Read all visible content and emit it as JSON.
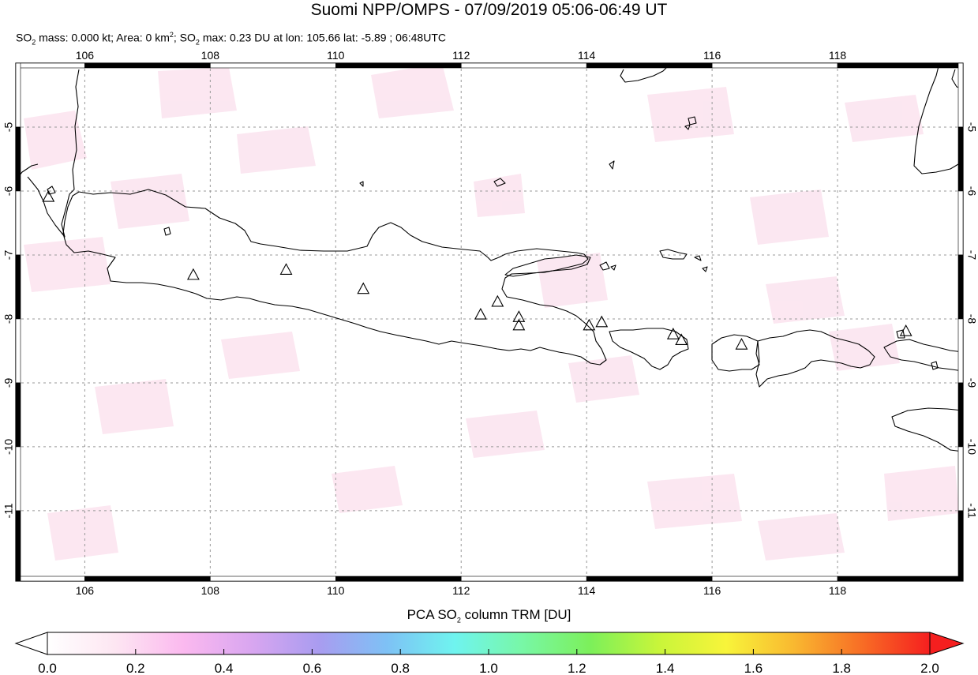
{
  "header": {
    "title": "Suomi NPP/OMPS - 07/09/2019 05:06-06:49 UT",
    "subtitle": {
      "so2_mass_label": "SO",
      "sub2": "2",
      "mass_text": " mass: 0.000 kt; Area: 0 km",
      "sup2": "2",
      "sep": "; SO",
      "max_text": " max: 0.23 DU at lon: 105.66 lat: -5.89 ; 06:48UTC"
    }
  },
  "map": {
    "lon_ticks": [
      "106",
      "108",
      "110",
      "112",
      "114",
      "116",
      "118"
    ],
    "lat_ticks": [
      "-5",
      "-6",
      "-7",
      "-8",
      "-9",
      "-10",
      "-11"
    ],
    "lon_range": [
      104.9,
      120.0
    ],
    "lat_range": [
      -12.1,
      -4.0
    ],
    "coastline_color": "#000000",
    "background_color": "#ffffff",
    "volcano_marker": "triangle-outline",
    "volcanoes": [
      {
        "lon": 105.42,
        "lat": -6.1
      },
      {
        "lon": 107.73,
        "lat": -7.32
      },
      {
        "lon": 109.21,
        "lat": -7.24
      },
      {
        "lon": 110.44,
        "lat": -7.54
      },
      {
        "lon": 112.31,
        "lat": -7.94
      },
      {
        "lon": 112.58,
        "lat": -7.74
      },
      {
        "lon": 112.92,
        "lat": -7.98
      },
      {
        "lon": 112.92,
        "lat": -8.11
      },
      {
        "lon": 114.04,
        "lat": -8.11
      },
      {
        "lon": 114.24,
        "lat": -8.06
      },
      {
        "lon": 115.38,
        "lat": -8.25
      },
      {
        "lon": 115.51,
        "lat": -8.34
      },
      {
        "lon": 116.47,
        "lat": -8.41
      },
      {
        "lon": 119.09,
        "lat": -8.2
      }
    ]
  },
  "colorbar": {
    "title_pre": "PCA SO",
    "title_sub": "2",
    "title_post": " column TRM [DU]",
    "tick_labels": [
      "0.0",
      "0.2",
      "0.4",
      "0.6",
      "0.8",
      "1.0",
      "1.2",
      "1.4",
      "1.6",
      "1.8",
      "2.0"
    ],
    "range": [
      0.0,
      2.0
    ],
    "colors": [
      "#ffffff",
      "#fde6f2",
      "#fbb9ef",
      "#d9a6f0",
      "#a99cf0",
      "#7ec1f5",
      "#6ff4ef",
      "#78f7a6",
      "#7cf05a",
      "#c8f53a",
      "#f8f43a",
      "#f9b830",
      "#f86d25",
      "#f51f1f"
    ]
  }
}
